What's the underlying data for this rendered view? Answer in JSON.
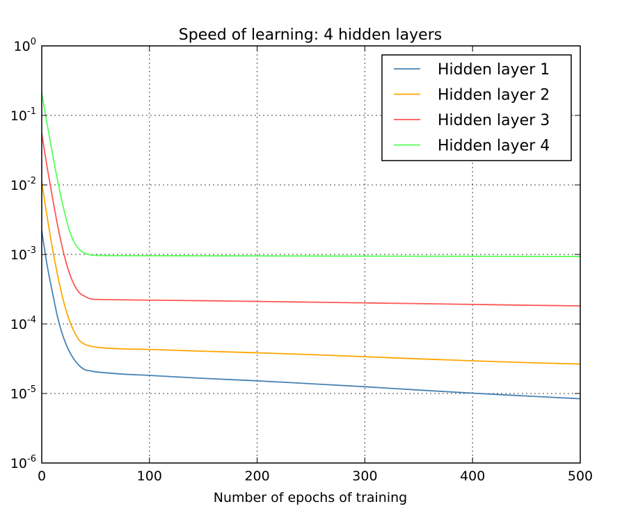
{
  "chart_data": {
    "type": "line",
    "title": "Speed of learning: 4 hidden layers",
    "xlabel": "Number of epochs of training",
    "ylabel": "",
    "xlim": [
      0,
      500
    ],
    "ylim": [
      1e-06,
      1
    ],
    "yscale": "log",
    "grid": true,
    "legend_position": "top-right",
    "x_ticks": [
      0,
      100,
      200,
      300,
      400,
      500
    ],
    "y_ticks": [
      {
        "value": 1.0,
        "base": "10",
        "exp": "0"
      },
      {
        "value": 0.1,
        "base": "10",
        "exp": "-1"
      },
      {
        "value": 0.01,
        "base": "10",
        "exp": "-2"
      },
      {
        "value": 0.001,
        "base": "10",
        "exp": "-3"
      },
      {
        "value": 0.0001,
        "base": "10",
        "exp": "-4"
      },
      {
        "value": 1e-05,
        "base": "10",
        "exp": "-5"
      },
      {
        "value": 1e-06,
        "base": "10",
        "exp": "-6"
      }
    ],
    "series": [
      {
        "name": "Hidden layer 1",
        "color": "#4682b4",
        "x": [
          0,
          5,
          10,
          15,
          20,
          25,
          30,
          35,
          40,
          45,
          50,
          60,
          80,
          100,
          150,
          200,
          250,
          300,
          350,
          400,
          450,
          500
        ],
        "y": [
          0.0022,
          0.0007,
          0.00028,
          0.00012,
          6.5e-05,
          4.2e-05,
          3.1e-05,
          2.5e-05,
          2.2e-05,
          2.12e-05,
          2.05e-05,
          1.98e-05,
          1.88e-05,
          1.82e-05,
          1.65e-05,
          1.52e-05,
          1.38e-05,
          1.25e-05,
          1.12e-05,
          1.01e-05,
          9.2e-06,
          8.4e-06
        ]
      },
      {
        "name": "Hidden layer 2",
        "color": "#ffa500",
        "x": [
          0,
          5,
          10,
          15,
          20,
          25,
          30,
          35,
          40,
          45,
          50,
          60,
          80,
          100,
          150,
          200,
          250,
          300,
          350,
          400,
          450,
          500
        ],
        "y": [
          0.011,
          0.0035,
          0.0012,
          0.00048,
          0.00022,
          0.00012,
          7.8e-05,
          5.8e-05,
          5.1e-05,
          4.8e-05,
          4.65e-05,
          4.5e-05,
          4.35e-05,
          4.3e-05,
          4.05e-05,
          3.85e-05,
          3.62e-05,
          3.38e-05,
          3.15e-05,
          2.95e-05,
          2.78e-05,
          2.65e-05
        ]
      },
      {
        "name": "Hidden layer 3",
        "color": "#ff5555",
        "x": [
          0,
          5,
          10,
          15,
          20,
          25,
          30,
          35,
          40,
          45,
          50,
          60,
          80,
          100,
          150,
          200,
          250,
          300,
          350,
          400,
          450,
          500
        ],
        "y": [
          0.055,
          0.018,
          0.0065,
          0.0025,
          0.0011,
          0.00058,
          0.00037,
          0.00028,
          0.00025,
          0.00023,
          0.000226,
          0.000224,
          0.000222,
          0.00022,
          0.000216,
          0.000211,
          0.000206,
          0.000201,
          0.000196,
          0.000191,
          0.000186,
          0.000182
        ]
      },
      {
        "name": "Hidden layer 4",
        "color": "#55ff55",
        "x": [
          0,
          5,
          10,
          15,
          20,
          25,
          30,
          35,
          40,
          45,
          50,
          55,
          60,
          80,
          100,
          150,
          200,
          250,
          300,
          350,
          400,
          450,
          500
        ],
        "y": [
          0.21,
          0.075,
          0.028,
          0.011,
          0.0048,
          0.0024,
          0.0015,
          0.00118,
          0.00104,
          0.000985,
          0.00097,
          0.000965,
          0.000962,
          0.00096,
          0.000958,
          0.000955,
          0.000952,
          0.000948,
          0.000945,
          0.000942,
          0.00094,
          0.000937,
          0.000935
        ]
      }
    ]
  }
}
